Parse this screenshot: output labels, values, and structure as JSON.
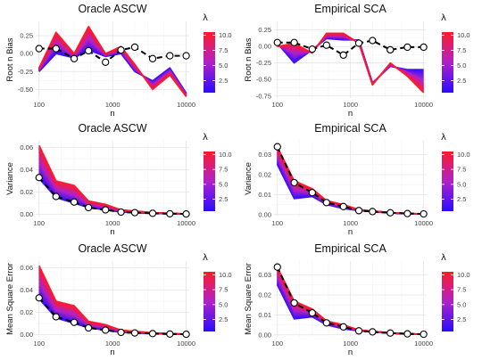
{
  "chart_data": [
    {
      "type": "line",
      "title": "Oracle ASCW",
      "xlabel": "n",
      "ylabel": "Root n Bias",
      "xscale": "log",
      "xlim": [
        90,
        11000
      ],
      "ylim": [
        -0.62,
        0.45
      ],
      "xticks": [
        100,
        1000,
        10000
      ],
      "xtick_labels": [
        "100",
        "1000",
        "10000"
      ],
      "yticks": [
        -0.5,
        -0.25,
        0.0,
        0.25
      ],
      "ytick_labels": [
        "-0.50",
        "-0.25",
        "0.00",
        "0.25"
      ],
      "x": [
        100,
        170,
        300,
        470,
        800,
        1300,
        2000,
        3500,
        6000,
        10000
      ],
      "oracle": [
        0.07,
        0.07,
        -0.07,
        0.04,
        -0.12,
        0.05,
        0.09,
        -0.07,
        -0.03,
        -0.03
      ],
      "band_low": [
        -0.25,
        0.0,
        -0.06,
        0.05,
        -0.04,
        0.0,
        -0.25,
        -0.38,
        -0.2,
        -0.55
      ],
      "band_high": [
        -0.2,
        0.3,
        0.0,
        0.38,
        0.0,
        0.1,
        -0.15,
        -0.5,
        -0.3,
        -0.6
      ],
      "legend": {
        "title": "λ",
        "ticks": [
          2.5,
          5.0,
          7.5,
          10.0
        ],
        "tick_labels": [
          "2.5",
          "5.0",
          "7.5",
          "10.0"
        ],
        "range": [
          0.5,
          10.5
        ]
      }
    },
    {
      "type": "line",
      "title": "Empirical SCA",
      "xlabel": "n",
      "ylabel": "Root n Bias",
      "xscale": "log",
      "xlim": [
        90,
        11000
      ],
      "ylim": [
        -0.78,
        0.38
      ],
      "xticks": [
        100,
        1000,
        10000
      ],
      "xtick_labels": [
        "100",
        "1000",
        "10000"
      ],
      "yticks": [
        -0.75,
        -0.5,
        -0.25,
        0.0,
        0.25
      ],
      "ytick_labels": [
        "-0.75",
        "-0.50",
        "-0.25",
        "0.00",
        "0.25"
      ],
      "x": [
        100,
        170,
        300,
        470,
        800,
        1300,
        2000,
        3500,
        6000,
        10000
      ],
      "oracle": [
        0.06,
        0.06,
        -0.04,
        0.02,
        -0.13,
        0.05,
        0.09,
        -0.05,
        -0.01,
        -0.01
      ],
      "band_low": [
        0.05,
        -0.25,
        -0.05,
        0.12,
        0.1,
        0.1,
        -0.55,
        -0.3,
        -0.35,
        -0.35
      ],
      "band_high": [
        0.0,
        0.05,
        -0.1,
        0.2,
        0.2,
        0.05,
        -0.58,
        -0.25,
        -0.45,
        -0.7
      ],
      "legend": {
        "title": "λ",
        "ticks": [
          2.5,
          5.0,
          7.5,
          10.0
        ],
        "tick_labels": [
          "2.5",
          "5.0",
          "7.5",
          "10.0"
        ],
        "range": [
          0.5,
          10.5
        ]
      }
    },
    {
      "type": "line",
      "title": "Oracle ASCW",
      "xlabel": "n",
      "ylabel": "Variance",
      "xscale": "log",
      "xlim": [
        90,
        11000
      ],
      "ylim": [
        -0.002,
        0.066
      ],
      "xticks": [
        100,
        1000,
        10000
      ],
      "xtick_labels": [
        "100",
        "1000",
        "10000"
      ],
      "yticks": [
        0.0,
        0.02,
        0.04,
        0.06
      ],
      "ytick_labels": [
        "0.00",
        "0.02",
        "0.04",
        "0.06"
      ],
      "x": [
        100,
        170,
        300,
        470,
        800,
        1300,
        2000,
        3500,
        6000,
        10000
      ],
      "oracle": [
        0.033,
        0.016,
        0.011,
        0.006,
        0.004,
        0.002,
        0.0015,
        0.0009,
        0.0005,
        0.0003
      ],
      "band_low": [
        0.032,
        0.015,
        0.01,
        0.006,
        0.004,
        0.002,
        0.0015,
        0.0009,
        0.0005,
        0.0003
      ],
      "band_high": [
        0.062,
        0.03,
        0.026,
        0.012,
        0.009,
        0.004,
        0.003,
        0.0015,
        0.0009,
        0.0005
      ],
      "legend": {
        "title": "λ",
        "ticks": [
          2.5,
          5.0,
          7.5,
          10.0
        ],
        "tick_labels": [
          "2.5",
          "5.0",
          "7.5",
          "10.0"
        ],
        "range": [
          0.5,
          10.5
        ]
      }
    },
    {
      "type": "line",
      "title": "Empirical SCA",
      "xlabel": "n",
      "ylabel": "Variance",
      "xscale": "log",
      "xlim": [
        90,
        11000
      ],
      "ylim": [
        -0.001,
        0.037
      ],
      "xticks": [
        100,
        1000,
        10000
      ],
      "xtick_labels": [
        "100",
        "1000",
        "10000"
      ],
      "yticks": [
        0.0,
        0.01,
        0.02,
        0.03
      ],
      "ytick_labels": [
        "0.00",
        "0.01",
        "0.02",
        "0.03"
      ],
      "x": [
        100,
        170,
        300,
        470,
        800,
        1300,
        2000,
        3500,
        6000,
        10000
      ],
      "oracle": [
        0.034,
        0.016,
        0.011,
        0.006,
        0.004,
        0.002,
        0.0015,
        0.0009,
        0.0005,
        0.0003
      ],
      "band_low": [
        0.025,
        0.008,
        0.009,
        0.005,
        0.003,
        0.002,
        0.0014,
        0.0008,
        0.0004,
        0.0002
      ],
      "band_high": [
        0.034,
        0.017,
        0.013,
        0.007,
        0.005,
        0.0025,
        0.0018,
        0.001,
        0.0006,
        0.0003
      ],
      "legend": {
        "title": "λ",
        "ticks": [
          2.5,
          5.0,
          7.5,
          10.0
        ],
        "tick_labels": [
          "2.5",
          "5.0",
          "7.5",
          "10.0"
        ],
        "range": [
          0.5,
          10.5
        ]
      }
    },
    {
      "type": "line",
      "title": "Oracle ASCW",
      "xlabel": "n",
      "ylabel": "Mean Square Error",
      "xscale": "log",
      "xlim": [
        90,
        11000
      ],
      "ylim": [
        -0.002,
        0.066
      ],
      "xticks": [
        100,
        1000,
        10000
      ],
      "xtick_labels": [
        "100",
        "1000",
        "10000"
      ],
      "yticks": [
        0.0,
        0.02,
        0.04,
        0.06
      ],
      "ytick_labels": [
        "0.00",
        "0.02",
        "0.04",
        "0.06"
      ],
      "x": [
        100,
        170,
        300,
        470,
        800,
        1300,
        2000,
        3500,
        6000,
        10000
      ],
      "oracle": [
        0.033,
        0.016,
        0.011,
        0.006,
        0.004,
        0.002,
        0.0015,
        0.0009,
        0.0005,
        0.0003
      ],
      "band_low": [
        0.032,
        0.015,
        0.01,
        0.006,
        0.004,
        0.002,
        0.0015,
        0.0009,
        0.0005,
        0.0003
      ],
      "band_high": [
        0.062,
        0.03,
        0.026,
        0.012,
        0.009,
        0.004,
        0.003,
        0.0015,
        0.0009,
        0.0005
      ],
      "legend": {
        "title": "λ",
        "ticks": [
          2.5,
          5.0,
          7.5,
          10.0
        ],
        "tick_labels": [
          "2.5",
          "5.0",
          "7.5",
          "10.0"
        ],
        "range": [
          0.5,
          10.5
        ]
      }
    },
    {
      "type": "line",
      "title": "Empirical SCA",
      "xlabel": "n",
      "ylabel": "Mean Square Error",
      "xscale": "log",
      "xlim": [
        90,
        11000
      ],
      "ylim": [
        -0.001,
        0.037
      ],
      "xticks": [
        100,
        1000,
        10000
      ],
      "xtick_labels": [
        "100",
        "1000",
        "10000"
      ],
      "yticks": [
        0.0,
        0.01,
        0.02,
        0.03
      ],
      "ytick_labels": [
        "0.00",
        "0.01",
        "0.02",
        "0.03"
      ],
      "x": [
        100,
        170,
        300,
        470,
        800,
        1300,
        2000,
        3500,
        6000,
        10000
      ],
      "oracle": [
        0.034,
        0.016,
        0.011,
        0.006,
        0.004,
        0.002,
        0.0015,
        0.0009,
        0.0005,
        0.0003
      ],
      "band_low": [
        0.025,
        0.008,
        0.009,
        0.005,
        0.003,
        0.002,
        0.0014,
        0.0008,
        0.0004,
        0.0002
      ],
      "band_high": [
        0.034,
        0.017,
        0.013,
        0.007,
        0.005,
        0.0025,
        0.0018,
        0.001,
        0.0006,
        0.0003
      ],
      "legend": {
        "title": "λ",
        "ticks": [
          2.5,
          5.0,
          7.5,
          10.0
        ],
        "tick_labels": [
          "2.5",
          "5.0",
          "7.5",
          "10.0"
        ],
        "range": [
          0.5,
          10.5
        ]
      }
    }
  ]
}
